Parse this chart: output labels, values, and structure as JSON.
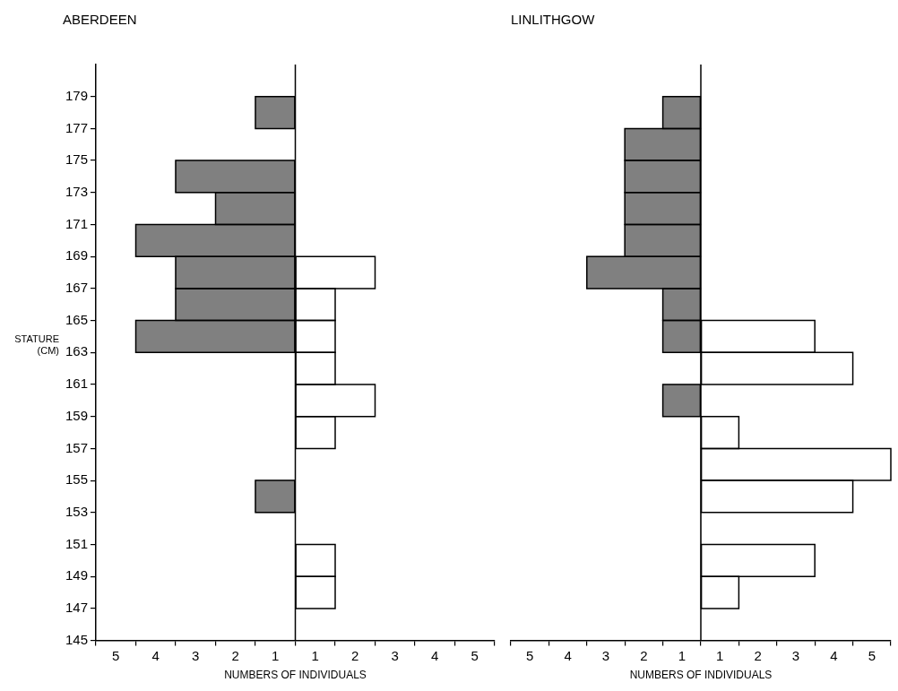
{
  "chart_data": [
    {
      "type": "histogram",
      "orientation": "horizontal",
      "title": "ABERDEEN",
      "xlabel": "NUMBERS OF INDIVIDUALS",
      "ylabel": "STATURE (CM)",
      "bins": [
        147,
        149,
        151,
        153,
        155,
        157,
        159,
        161,
        163,
        165,
        167,
        169,
        171,
        173,
        175,
        177,
        179
      ],
      "series": [
        {
          "color": "#808080",
          "values": [
            0,
            0,
            0,
            -1,
            0,
            0,
            0,
            0,
            -4,
            -3,
            -3,
            -4,
            -2,
            -3,
            0,
            -1
          ]
        },
        {
          "color": "#ffffff",
          "values": [
            1,
            1,
            0,
            0,
            0,
            1,
            2,
            1,
            1,
            1,
            2,
            0,
            0,
            0,
            0,
            0
          ]
        }
      ],
      "xlim": [
        -5,
        5
      ],
      "xticks": [
        {
          "value": -5,
          "label": null
        },
        {
          "value": -4.5,
          "label": "5"
        },
        {
          "value": -4,
          "label": null
        },
        {
          "value": -3.5,
          "label": "4"
        },
        {
          "value": -3,
          "label": null
        },
        {
          "value": -2.5,
          "label": "3"
        },
        {
          "value": -2,
          "label": null
        },
        {
          "value": -1.5,
          "label": "2"
        },
        {
          "value": -1,
          "label": null
        },
        {
          "value": -0.5,
          "label": "1"
        },
        {
          "value": 0,
          "label": null
        },
        {
          "value": 0.5,
          "label": "1"
        },
        {
          "value": 1,
          "label": null
        },
        {
          "value": 1.5,
          "label": "2"
        },
        {
          "value": 2,
          "label": null
        },
        {
          "value": 2.5,
          "label": "3"
        },
        {
          "value": 3,
          "label": null
        },
        {
          "value": 3.5,
          "label": "4"
        },
        {
          "value": 4,
          "label": null
        },
        {
          "value": 4.5,
          "label": "5"
        },
        {
          "value": 5,
          "label": null
        }
      ],
      "ylim": [
        145,
        181
      ],
      "yticks": [
        145,
        147,
        149,
        151,
        153,
        155,
        157,
        159,
        161,
        163,
        165,
        167,
        169,
        171,
        173,
        175,
        177,
        179
      ]
    },
    {
      "type": "histogram",
      "orientation": "horizontal",
      "title": "LINLITHGOW",
      "xlabel": "NUMBERS OF INDIVIDUALS",
      "tick_labels": "x",
      "bins": [
        147,
        149,
        151,
        153,
        155,
        157,
        159,
        161,
        163,
        165,
        167,
        169,
        171,
        173,
        175,
        177,
        179
      ],
      "series": [
        {
          "color": "#808080",
          "values": [
            0,
            0,
            0,
            0,
            0,
            0,
            -1,
            0,
            -1,
            -1,
            -3,
            -2,
            -2,
            -2,
            -2,
            -1
          ]
        },
        {
          "color": "#ffffff",
          "values": [
            1,
            3,
            0,
            4,
            5,
            1,
            0,
            4,
            3,
            0,
            0,
            0,
            0,
            0,
            0,
            0
          ]
        }
      ],
      "xlim": [
        -5,
        5
      ],
      "xticks": [
        {
          "value": -5,
          "label": null
        },
        {
          "value": -4.5,
          "label": "5"
        },
        {
          "value": -4,
          "label": null
        },
        {
          "value": -3.5,
          "label": "4"
        },
        {
          "value": -3,
          "label": null
        },
        {
          "value": -2.5,
          "label": "3"
        },
        {
          "value": -2,
          "label": null
        },
        {
          "value": -1.5,
          "label": "2"
        },
        {
          "value": -1,
          "label": null
        },
        {
          "value": -0.5,
          "label": "1"
        },
        {
          "value": 0,
          "label": null
        },
        {
          "value": 0.5,
          "label": "1"
        },
        {
          "value": 1,
          "label": null
        },
        {
          "value": 1.5,
          "label": "2"
        },
        {
          "value": 2,
          "label": null
        },
        {
          "value": 2.5,
          "label": "3"
        },
        {
          "value": 3,
          "label": null
        },
        {
          "value": 3.5,
          "label": "4"
        },
        {
          "value": 4,
          "label": null
        },
        {
          "value": 4.5,
          "label": "5"
        },
        {
          "value": 5,
          "label": null
        }
      ],
      "ylim": [
        145,
        181
      ],
      "yticks": [
        145,
        147,
        149,
        151,
        153,
        155,
        157,
        159,
        161,
        163,
        165,
        167,
        169,
        171,
        173,
        175,
        177,
        179
      ]
    }
  ]
}
